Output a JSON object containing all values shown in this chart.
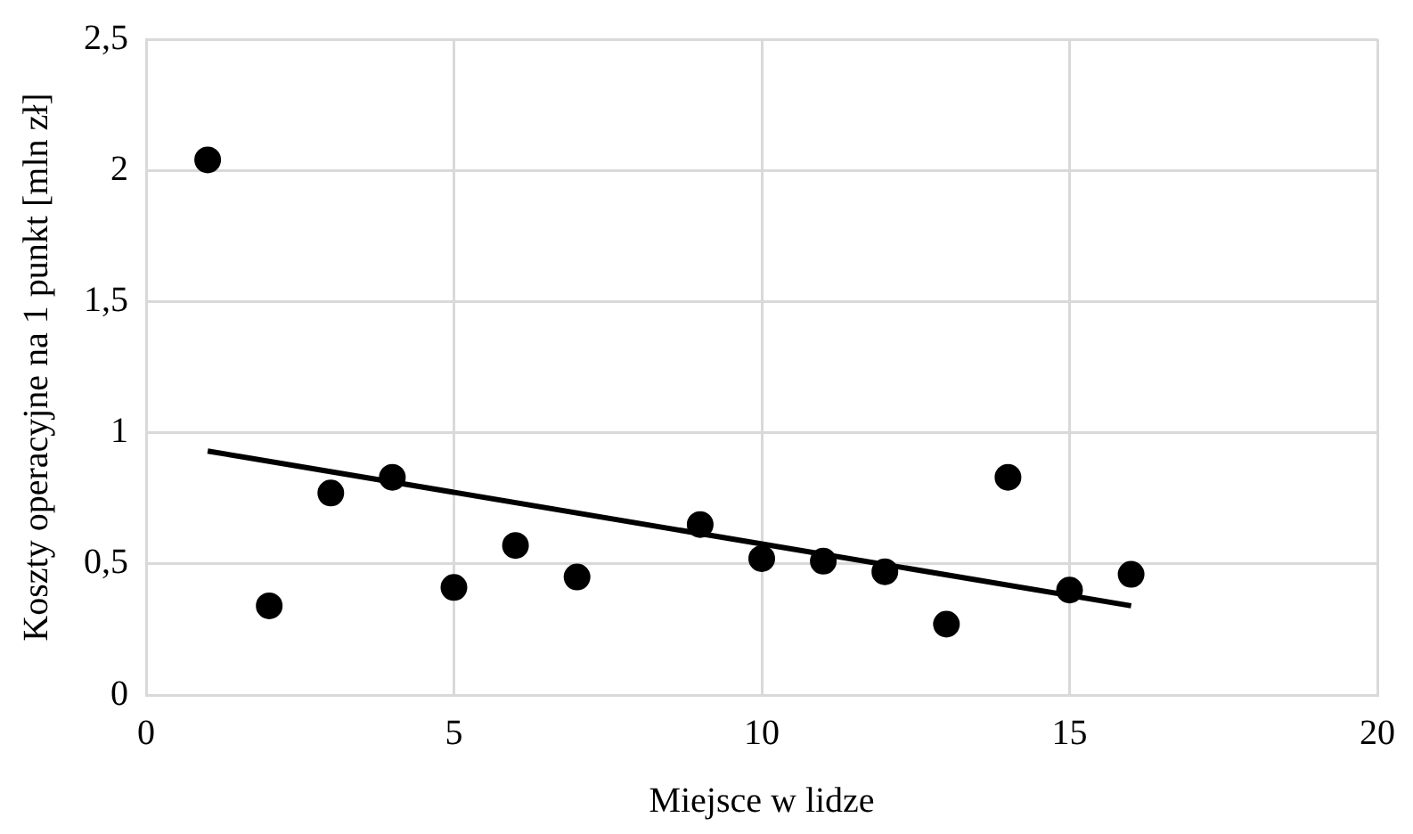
{
  "chart_data": {
    "type": "scatter",
    "xlabel": "Miejsce w lidze",
    "ylabel": "Koszty operacyjne na 1 punkt [mln zł]",
    "xlim": [
      0,
      20
    ],
    "xticks": [
      0,
      5,
      10,
      15,
      20
    ],
    "ylim": [
      0,
      2.5
    ],
    "yticks": [
      {
        "value": 0,
        "label": "0"
      },
      {
        "value": 0.5,
        "label": "0,5"
      },
      {
        "value": 1,
        "label": "1"
      },
      {
        "value": 1.5,
        "label": "1,5"
      },
      {
        "value": 2,
        "label": "2"
      },
      {
        "value": 2.5,
        "label": "2,5"
      }
    ],
    "grid": true,
    "series": [
      {
        "marker": "circle",
        "color": "#000000",
        "x": [
          1,
          2,
          3,
          4,
          5,
          6,
          7,
          9,
          10,
          11,
          12,
          13,
          14,
          15,
          16
        ],
        "values": [
          2.04,
          0.34,
          0.77,
          0.83,
          0.41,
          0.57,
          0.45,
          0.65,
          0.52,
          0.51,
          0.47,
          0.27,
          0.83,
          0.4,
          0.46
        ]
      },
      {
        "type": "line",
        "marker": "none",
        "color": "#000000",
        "x": [
          1,
          16
        ],
        "values": [
          0.93,
          0.34
        ]
      }
    ]
  }
}
